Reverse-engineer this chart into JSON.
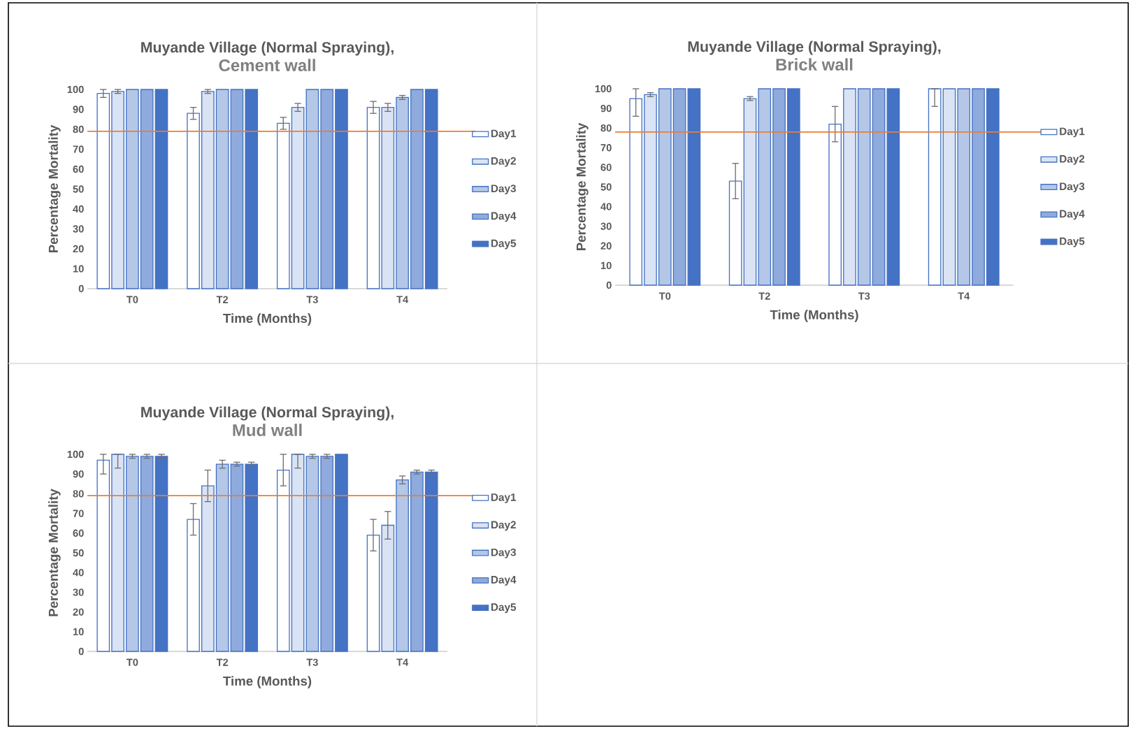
{
  "chart_data": [
    {
      "type": "bar",
      "title": "Muyande Village (Normal Spraying),",
      "subtitle": "Cement wall",
      "xlabel": "Time (Months)",
      "ylabel": "Percentage Mortality",
      "categories": [
        "T0",
        "T2",
        "T3",
        "T4"
      ],
      "ylim": [
        0,
        100
      ],
      "yticks": [
        0,
        10,
        20,
        30,
        40,
        50,
        60,
        70,
        80,
        90,
        100
      ],
      "legend": "right",
      "series": [
        {
          "name": "Day1",
          "color": "#ffffff",
          "values": [
            98,
            88,
            83,
            91
          ],
          "errors": [
            2,
            3,
            3,
            3
          ]
        },
        {
          "name": "Day2",
          "color": "#dae3f3",
          "values": [
            99,
            99,
            91,
            91
          ],
          "errors": [
            1,
            1,
            2,
            2
          ]
        },
        {
          "name": "Day3",
          "color": "#b4c7e7",
          "values": [
            100,
            100,
            100,
            96
          ],
          "errors": [
            null,
            null,
            null,
            1
          ]
        },
        {
          "name": "Day4",
          "color": "#8faadc",
          "values": [
            100,
            100,
            100,
            100
          ],
          "errors": [
            null,
            null,
            null,
            null
          ]
        },
        {
          "name": "Day5",
          "color": "#4472c4",
          "values": [
            100,
            100,
            100,
            100
          ],
          "errors": [
            null,
            null,
            null,
            null
          ]
        }
      ],
      "ref_lines": [
        {
          "axis": "y",
          "value": 79,
          "color": "#ed7d31"
        }
      ]
    },
    {
      "type": "bar",
      "title": "Muyande Village (Normal Spraying),",
      "subtitle": "Brick wall",
      "xlabel": "Time (Months)",
      "ylabel": "Percentage Mortality",
      "categories": [
        "T0",
        "T2",
        "T3",
        "T4"
      ],
      "ylim": [
        0,
        100
      ],
      "yticks": [
        0,
        10,
        20,
        30,
        40,
        50,
        60,
        70,
        80,
        90,
        100
      ],
      "legend": "right",
      "series": [
        {
          "name": "Day1",
          "color": "#ffffff",
          "values": [
            95,
            53,
            82,
            100
          ],
          "errors": [
            [
              86,
              100
            ],
            9,
            9,
            [
              91,
              100
            ]
          ]
        },
        {
          "name": "Day2",
          "color": "#dae3f3",
          "values": [
            97,
            95,
            100,
            100
          ],
          "errors": [
            1,
            1,
            null,
            null
          ]
        },
        {
          "name": "Day3",
          "color": "#b4c7e7",
          "values": [
            100,
            100,
            100,
            100
          ],
          "errors": [
            null,
            null,
            null,
            null
          ]
        },
        {
          "name": "Day4",
          "color": "#8faadc",
          "values": [
            100,
            100,
            100,
            100
          ],
          "errors": [
            null,
            null,
            null,
            null
          ]
        },
        {
          "name": "Day5",
          "color": "#4472c4",
          "values": [
            100,
            100,
            100,
            100
          ],
          "errors": [
            null,
            null,
            null,
            null
          ]
        }
      ],
      "ref_lines": [
        {
          "axis": "y",
          "value": 78,
          "color": "#ed7d31"
        }
      ]
    },
    {
      "type": "bar",
      "title": "Muyande Village (Normal Spraying),",
      "subtitle": "Mud wall",
      "xlabel": "Time (Months)",
      "ylabel": "Percentage Mortality",
      "categories": [
        "T0",
        "T2",
        "T3",
        "T4"
      ],
      "ylim": [
        0,
        100
      ],
      "yticks": [
        0,
        10,
        20,
        30,
        40,
        50,
        60,
        70,
        80,
        90,
        100
      ],
      "legend": "right",
      "series": [
        {
          "name": "Day1",
          "color": "#ffffff",
          "values": [
            97,
            67,
            92,
            59
          ],
          "errors": [
            [
              90,
              100
            ],
            8,
            8,
            8
          ]
        },
        {
          "name": "Day2",
          "color": "#dae3f3",
          "values": [
            100,
            84,
            100,
            64
          ],
          "errors": [
            [
              93,
              100
            ],
            8,
            [
              93,
              100
            ],
            7
          ]
        },
        {
          "name": "Day3",
          "color": "#b4c7e7",
          "values": [
            99,
            95,
            99,
            87
          ],
          "errors": [
            1,
            2,
            1,
            2
          ]
        },
        {
          "name": "Day4",
          "color": "#8faadc",
          "values": [
            99,
            95,
            99,
            91
          ],
          "errors": [
            1,
            1,
            1,
            1
          ]
        },
        {
          "name": "Day5",
          "color": "#4472c4",
          "values": [
            99,
            95,
            100,
            91
          ],
          "errors": [
            1,
            1,
            null,
            1
          ]
        }
      ],
      "ref_lines": [
        {
          "axis": "y",
          "value": 79,
          "color": "#ed7d31"
        }
      ]
    }
  ]
}
